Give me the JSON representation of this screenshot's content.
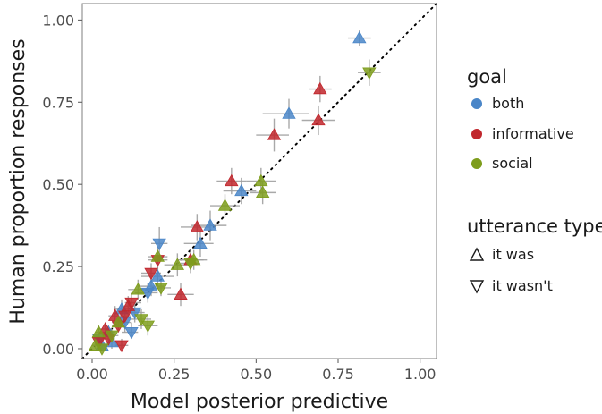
{
  "chart_data": {
    "type": "scatter",
    "xlabel": "Model posterior predictive",
    "ylabel": "Human proportion responses",
    "xlim": [
      -0.03,
      1.05
    ],
    "ylim": [
      -0.03,
      1.05
    ],
    "x_ticks": [
      "0.00",
      "0.25",
      "0.50",
      "0.75",
      "1.00"
    ],
    "y_ticks": [
      "0.00",
      "0.25",
      "0.50",
      "0.75",
      "1.00"
    ],
    "x_tick_values": [
      0,
      0.25,
      0.5,
      0.75,
      1.0
    ],
    "y_tick_values": [
      0,
      0.25,
      0.5,
      0.75,
      1.0
    ],
    "grid": false,
    "reference_line": "dotted identity line (y = x)",
    "legend_placement": "right",
    "colors": {
      "both": "#4a86c8",
      "informative": "#c1272d",
      "social": "#7e9d1c",
      "error_bar": "#a0a0a0",
      "frame": "#7f7f7f"
    },
    "legend": {
      "goal_title": "goal",
      "goal_items": [
        {
          "label": "both",
          "color": "#4a86c8"
        },
        {
          "label": "informative",
          "color": "#c1272d"
        },
        {
          "label": "social",
          "color": "#7e9d1c"
        }
      ],
      "utterance_title": "utterance type",
      "utterance_items": [
        {
          "label": "it was",
          "shape": "triangle-up"
        },
        {
          "label": "it wasn't",
          "shape": "triangle-down"
        }
      ]
    },
    "points": [
      {
        "goal": "both",
        "utt": "it was",
        "x": 0.815,
        "y": 0.945,
        "xerr": [
          0.78,
          0.85
        ],
        "yerr": [
          0.92,
          0.97
        ]
      },
      {
        "goal": "both",
        "utt": "it was",
        "x": 0.6,
        "y": 0.715,
        "xerr": [
          0.52,
          0.66
        ],
        "yerr": [
          0.67,
          0.76
        ]
      },
      {
        "goal": "both",
        "utt": "it was",
        "x": 0.455,
        "y": 0.48,
        "xerr": [
          0.4,
          0.5
        ],
        "yerr": [
          0.44,
          0.52
        ]
      },
      {
        "goal": "both",
        "utt": "it was",
        "x": 0.36,
        "y": 0.375,
        "xerr": [
          0.3,
          0.41
        ],
        "yerr": [
          0.33,
          0.42
        ]
      },
      {
        "goal": "both",
        "utt": "it was",
        "x": 0.33,
        "y": 0.32,
        "xerr": [
          0.28,
          0.37
        ],
        "yerr": [
          0.28,
          0.36
        ]
      },
      {
        "goal": "both",
        "utt": "it was",
        "x": 0.2,
        "y": 0.22,
        "xerr": [
          0.15,
          0.25
        ],
        "yerr": [
          0.19,
          0.25
        ]
      },
      {
        "goal": "both",
        "utt": "it was",
        "x": 0.18,
        "y": 0.19,
        "xerr": [
          0.14,
          0.22
        ],
        "yerr": [
          0.16,
          0.22
        ]
      },
      {
        "goal": "both",
        "utt": "it wasn't",
        "x": 0.205,
        "y": 0.32,
        "xerr": [
          0.18,
          0.23
        ],
        "yerr": [
          0.27,
          0.37
        ]
      },
      {
        "goal": "both",
        "utt": "it wasn't",
        "x": 0.17,
        "y": 0.17,
        "xerr": [
          0.13,
          0.2
        ],
        "yerr": [
          0.14,
          0.2
        ]
      },
      {
        "goal": "both",
        "utt": "it wasn't",
        "x": 0.13,
        "y": 0.11,
        "xerr": [
          0.1,
          0.16
        ],
        "yerr": [
          0.08,
          0.14
        ]
      },
      {
        "goal": "both",
        "utt": "it wasn't",
        "x": 0.12,
        "y": 0.05,
        "xerr": [
          0.09,
          0.14
        ],
        "yerr": [
          0.03,
          0.08
        ]
      },
      {
        "goal": "both",
        "utt": "it wasn't",
        "x": 0.1,
        "y": 0.08,
        "xerr": [
          0.08,
          0.12
        ],
        "yerr": [
          0.05,
          0.11
        ]
      },
      {
        "goal": "both",
        "utt": "it was",
        "x": 0.05,
        "y": 0.05,
        "xerr": [
          0.03,
          0.07
        ],
        "yerr": [
          0.03,
          0.07
        ]
      },
      {
        "goal": "both",
        "utt": "it was",
        "x": 0.06,
        "y": 0.02,
        "xerr": [
          0.04,
          0.08
        ],
        "yerr": [
          0.0,
          0.04
        ]
      },
      {
        "goal": "both",
        "utt": "it wasn't",
        "x": 0.02,
        "y": 0.03,
        "xerr": [
          0.01,
          0.03
        ],
        "yerr": [
          0.01,
          0.05
        ]
      },
      {
        "goal": "both",
        "utt": "it was",
        "x": 0.03,
        "y": 0.01,
        "xerr": [
          0.02,
          0.04
        ],
        "yerr": [
          0.0,
          0.02
        ]
      },
      {
        "goal": "both",
        "utt": "it was",
        "x": 0.09,
        "y": 0.12,
        "xerr": [
          0.07,
          0.11
        ],
        "yerr": [
          0.09,
          0.15
        ]
      },
      {
        "goal": "informative",
        "utt": "it was",
        "x": 0.695,
        "y": 0.79,
        "xerr": [
          0.66,
          0.73
        ],
        "yerr": [
          0.75,
          0.83
        ]
      },
      {
        "goal": "informative",
        "utt": "it was",
        "x": 0.69,
        "y": 0.695,
        "xerr": [
          0.64,
          0.74
        ],
        "yerr": [
          0.65,
          0.74
        ]
      },
      {
        "goal": "informative",
        "utt": "it was",
        "x": 0.555,
        "y": 0.65,
        "xerr": [
          0.5,
          0.6
        ],
        "yerr": [
          0.6,
          0.7
        ]
      },
      {
        "goal": "informative",
        "utt": "it was",
        "x": 0.425,
        "y": 0.51,
        "xerr": [
          0.38,
          0.47
        ],
        "yerr": [
          0.47,
          0.55
        ]
      },
      {
        "goal": "informative",
        "utt": "it was",
        "x": 0.32,
        "y": 0.37,
        "xerr": [
          0.27,
          0.36
        ],
        "yerr": [
          0.33,
          0.41
        ]
      },
      {
        "goal": "informative",
        "utt": "it was",
        "x": 0.3,
        "y": 0.27,
        "xerr": [
          0.26,
          0.34
        ],
        "yerr": [
          0.24,
          0.3
        ]
      },
      {
        "goal": "informative",
        "utt": "it was",
        "x": 0.27,
        "y": 0.165,
        "xerr": [
          0.23,
          0.31
        ],
        "yerr": [
          0.13,
          0.2
        ]
      },
      {
        "goal": "informative",
        "utt": "it wasn't",
        "x": 0.2,
        "y": 0.27,
        "xerr": [
          0.17,
          0.23
        ],
        "yerr": [
          0.23,
          0.31
        ]
      },
      {
        "goal": "informative",
        "utt": "it wasn't",
        "x": 0.18,
        "y": 0.23,
        "xerr": [
          0.15,
          0.21
        ],
        "yerr": [
          0.2,
          0.26
        ]
      },
      {
        "goal": "informative",
        "utt": "it wasn't",
        "x": 0.12,
        "y": 0.14,
        "xerr": [
          0.1,
          0.15
        ],
        "yerr": [
          0.11,
          0.17
        ]
      },
      {
        "goal": "informative",
        "utt": "it was",
        "x": 0.11,
        "y": 0.13,
        "xerr": [
          0.09,
          0.13
        ],
        "yerr": [
          0.1,
          0.16
        ]
      },
      {
        "goal": "informative",
        "utt": "it wasn't",
        "x": 0.1,
        "y": 0.1,
        "xerr": [
          0.08,
          0.12
        ],
        "yerr": [
          0.07,
          0.13
        ]
      },
      {
        "goal": "informative",
        "utt": "it wasn't",
        "x": 0.08,
        "y": 0.07,
        "xerr": [
          0.06,
          0.1
        ],
        "yerr": [
          0.05,
          0.1
        ]
      },
      {
        "goal": "informative",
        "utt": "it was",
        "x": 0.07,
        "y": 0.1,
        "xerr": [
          0.05,
          0.09
        ],
        "yerr": [
          0.07,
          0.13
        ]
      },
      {
        "goal": "informative",
        "utt": "it wasn't",
        "x": 0.09,
        "y": 0.01,
        "xerr": [
          0.07,
          0.11
        ],
        "yerr": [
          0.0,
          0.03
        ]
      },
      {
        "goal": "informative",
        "utt": "it wasn't",
        "x": 0.05,
        "y": 0.03,
        "xerr": [
          0.03,
          0.07
        ],
        "yerr": [
          0.01,
          0.05
        ]
      },
      {
        "goal": "informative",
        "utt": "it was",
        "x": 0.04,
        "y": 0.06,
        "xerr": [
          0.02,
          0.06
        ],
        "yerr": [
          0.04,
          0.08
        ]
      },
      {
        "goal": "informative",
        "utt": "it wasn't",
        "x": 0.02,
        "y": 0.02,
        "xerr": [
          0.01,
          0.03
        ],
        "yerr": [
          0.0,
          0.04
        ]
      },
      {
        "goal": "social",
        "utt": "it wasn't",
        "x": 0.845,
        "y": 0.84,
        "xerr": [
          0.81,
          0.88
        ],
        "yerr": [
          0.8,
          0.88
        ]
      },
      {
        "goal": "social",
        "utt": "it was",
        "x": 0.515,
        "y": 0.51,
        "xerr": [
          0.47,
          0.56
        ],
        "yerr": [
          0.47,
          0.55
        ]
      },
      {
        "goal": "social",
        "utt": "it was",
        "x": 0.52,
        "y": 0.475,
        "xerr": [
          0.48,
          0.56
        ],
        "yerr": [
          0.44,
          0.51
        ]
      },
      {
        "goal": "social",
        "utt": "it was",
        "x": 0.405,
        "y": 0.435,
        "xerr": [
          0.36,
          0.45
        ],
        "yerr": [
          0.4,
          0.47
        ]
      },
      {
        "goal": "social",
        "utt": "it was",
        "x": 0.31,
        "y": 0.27,
        "xerr": [
          0.27,
          0.35
        ],
        "yerr": [
          0.24,
          0.3
        ]
      },
      {
        "goal": "social",
        "utt": "it wasn't",
        "x": 0.3,
        "y": 0.26,
        "xerr": [
          0.27,
          0.33
        ],
        "yerr": [
          0.23,
          0.29
        ]
      },
      {
        "goal": "social",
        "utt": "it was",
        "x": 0.26,
        "y": 0.255,
        "xerr": [
          0.22,
          0.3
        ],
        "yerr": [
          0.22,
          0.29
        ]
      },
      {
        "goal": "social",
        "utt": "it was",
        "x": 0.2,
        "y": 0.28,
        "xerr": [
          0.17,
          0.23
        ],
        "yerr": [
          0.25,
          0.31
        ]
      },
      {
        "goal": "social",
        "utt": "it wasn't",
        "x": 0.21,
        "y": 0.185,
        "xerr": [
          0.18,
          0.24
        ],
        "yerr": [
          0.16,
          0.21
        ]
      },
      {
        "goal": "social",
        "utt": "it was",
        "x": 0.14,
        "y": 0.18,
        "xerr": [
          0.11,
          0.17
        ],
        "yerr": [
          0.15,
          0.21
        ]
      },
      {
        "goal": "social",
        "utt": "it wasn't",
        "x": 0.15,
        "y": 0.09,
        "xerr": [
          0.12,
          0.18
        ],
        "yerr": [
          0.06,
          0.12
        ]
      },
      {
        "goal": "social",
        "utt": "it wasn't",
        "x": 0.17,
        "y": 0.07,
        "xerr": [
          0.14,
          0.2
        ],
        "yerr": [
          0.04,
          0.1
        ]
      },
      {
        "goal": "social",
        "utt": "it was",
        "x": 0.08,
        "y": 0.08,
        "xerr": [
          0.06,
          0.1
        ],
        "yerr": [
          0.05,
          0.11
        ]
      },
      {
        "goal": "social",
        "utt": "it wasn't",
        "x": 0.06,
        "y": 0.04,
        "xerr": [
          0.04,
          0.08
        ],
        "yerr": [
          0.02,
          0.06
        ]
      },
      {
        "goal": "social",
        "utt": "it was",
        "x": 0.02,
        "y": 0.05,
        "xerr": [
          0.01,
          0.03
        ],
        "yerr": [
          0.03,
          0.07
        ]
      },
      {
        "goal": "social",
        "utt": "it was",
        "x": 0.01,
        "y": 0.01,
        "xerr": [
          0.0,
          0.02
        ],
        "yerr": [
          0.0,
          0.03
        ]
      },
      {
        "goal": "social",
        "utt": "it wasn't",
        "x": 0.03,
        "y": 0.0,
        "xerr": [
          0.02,
          0.04
        ],
        "yerr": [
          0.0,
          0.02
        ]
      }
    ]
  }
}
